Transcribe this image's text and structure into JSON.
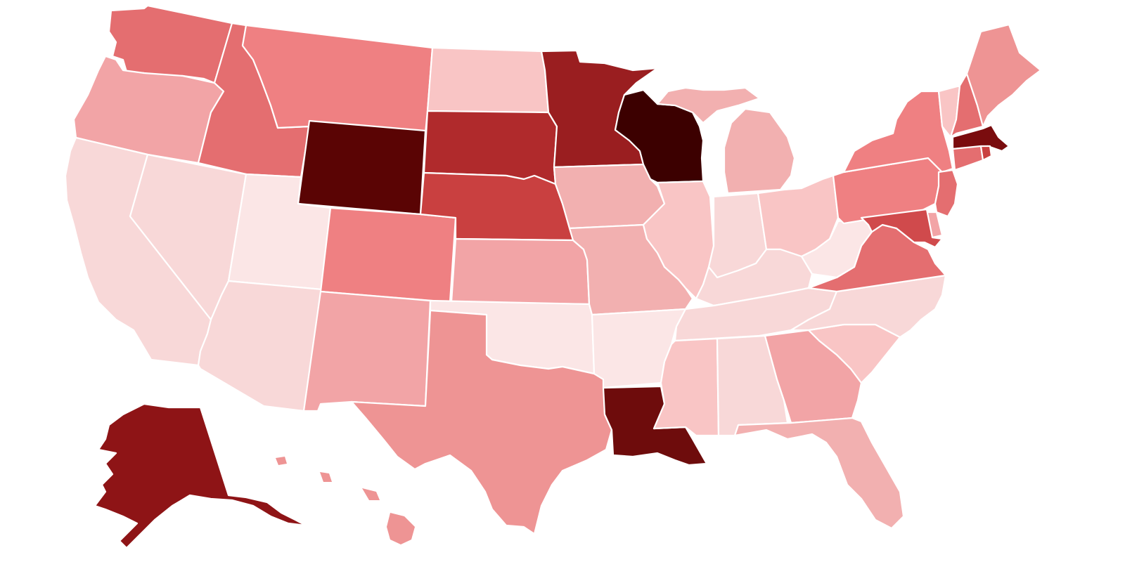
{
  "map": {
    "type": "choropleth",
    "region": "United States",
    "color_scale": [
      "#fbe6e6",
      "#f9c5c5",
      "#f2a4a6",
      "#ee8a8c",
      "#e46e70",
      "#c94040",
      "#b02a2c",
      "#9a1e20",
      "#5a0404",
      "#3c0000"
    ],
    "states": [
      {
        "id": "WA",
        "color": "#e46e70"
      },
      {
        "id": "OR",
        "color": "#f2a4a6"
      },
      {
        "id": "CA",
        "color": "#f8d8d8"
      },
      {
        "id": "ID",
        "color": "#e46e70"
      },
      {
        "id": "NV",
        "color": "#f8d8d8"
      },
      {
        "id": "MT",
        "color": "#ef8082"
      },
      {
        "id": "WY",
        "color": "#5a0404"
      },
      {
        "id": "UT",
        "color": "#fbe6e6"
      },
      {
        "id": "AZ",
        "color": "#f8d8d8"
      },
      {
        "id": "CO",
        "color": "#ef8082"
      },
      {
        "id": "NM",
        "color": "#f2a4a6"
      },
      {
        "id": "ND",
        "color": "#f9c5c5"
      },
      {
        "id": "SD",
        "color": "#b02a2c"
      },
      {
        "id": "NE",
        "color": "#c94040"
      },
      {
        "id": "KS",
        "color": "#f2a4a6"
      },
      {
        "id": "OK",
        "color": "#fbe6e6"
      },
      {
        "id": "TX",
        "color": "#ee9494"
      },
      {
        "id": "MN",
        "color": "#9a1e20"
      },
      {
        "id": "IA",
        "color": "#f2b0b0"
      },
      {
        "id": "MO",
        "color": "#f2b0b0"
      },
      {
        "id": "AR",
        "color": "#fbe6e6"
      },
      {
        "id": "LA",
        "color": "#6e0c0c"
      },
      {
        "id": "WI",
        "color": "#3c0000"
      },
      {
        "id": "IL",
        "color": "#f9c5c5"
      },
      {
        "id": "MI",
        "color": "#f2b0b0"
      },
      {
        "id": "IN",
        "color": "#f8d8d8"
      },
      {
        "id": "OH",
        "color": "#f9c5c5"
      },
      {
        "id": "KY",
        "color": "#f8d8d8"
      },
      {
        "id": "TN",
        "color": "#f8d8d8"
      },
      {
        "id": "MS",
        "color": "#f9c5c5"
      },
      {
        "id": "AL",
        "color": "#f8d8d8"
      },
      {
        "id": "GA",
        "color": "#f2a4a6"
      },
      {
        "id": "FL",
        "color": "#f2b0b0"
      },
      {
        "id": "SC",
        "color": "#f9c5c5"
      },
      {
        "id": "NC",
        "color": "#f8d8d8"
      },
      {
        "id": "VA",
        "color": "#e46e70"
      },
      {
        "id": "WV",
        "color": "#fbe6e6"
      },
      {
        "id": "PA",
        "color": "#ef8082"
      },
      {
        "id": "NY",
        "color": "#ef8082"
      },
      {
        "id": "VT",
        "color": "#f9c5c5"
      },
      {
        "id": "NH",
        "color": "#e46e70"
      },
      {
        "id": "ME",
        "color": "#ee9494"
      },
      {
        "id": "MA",
        "color": "#7a0c0e"
      },
      {
        "id": "CT",
        "color": "#e46e70"
      },
      {
        "id": "RI",
        "color": "#c94040"
      },
      {
        "id": "NJ",
        "color": "#e46e70"
      },
      {
        "id": "DE",
        "color": "#f2a4a6"
      },
      {
        "id": "MD",
        "color": "#d04a4c"
      },
      {
        "id": "AK",
        "color": "#8e1416"
      },
      {
        "id": "HI",
        "color": "#ee9494"
      }
    ]
  }
}
